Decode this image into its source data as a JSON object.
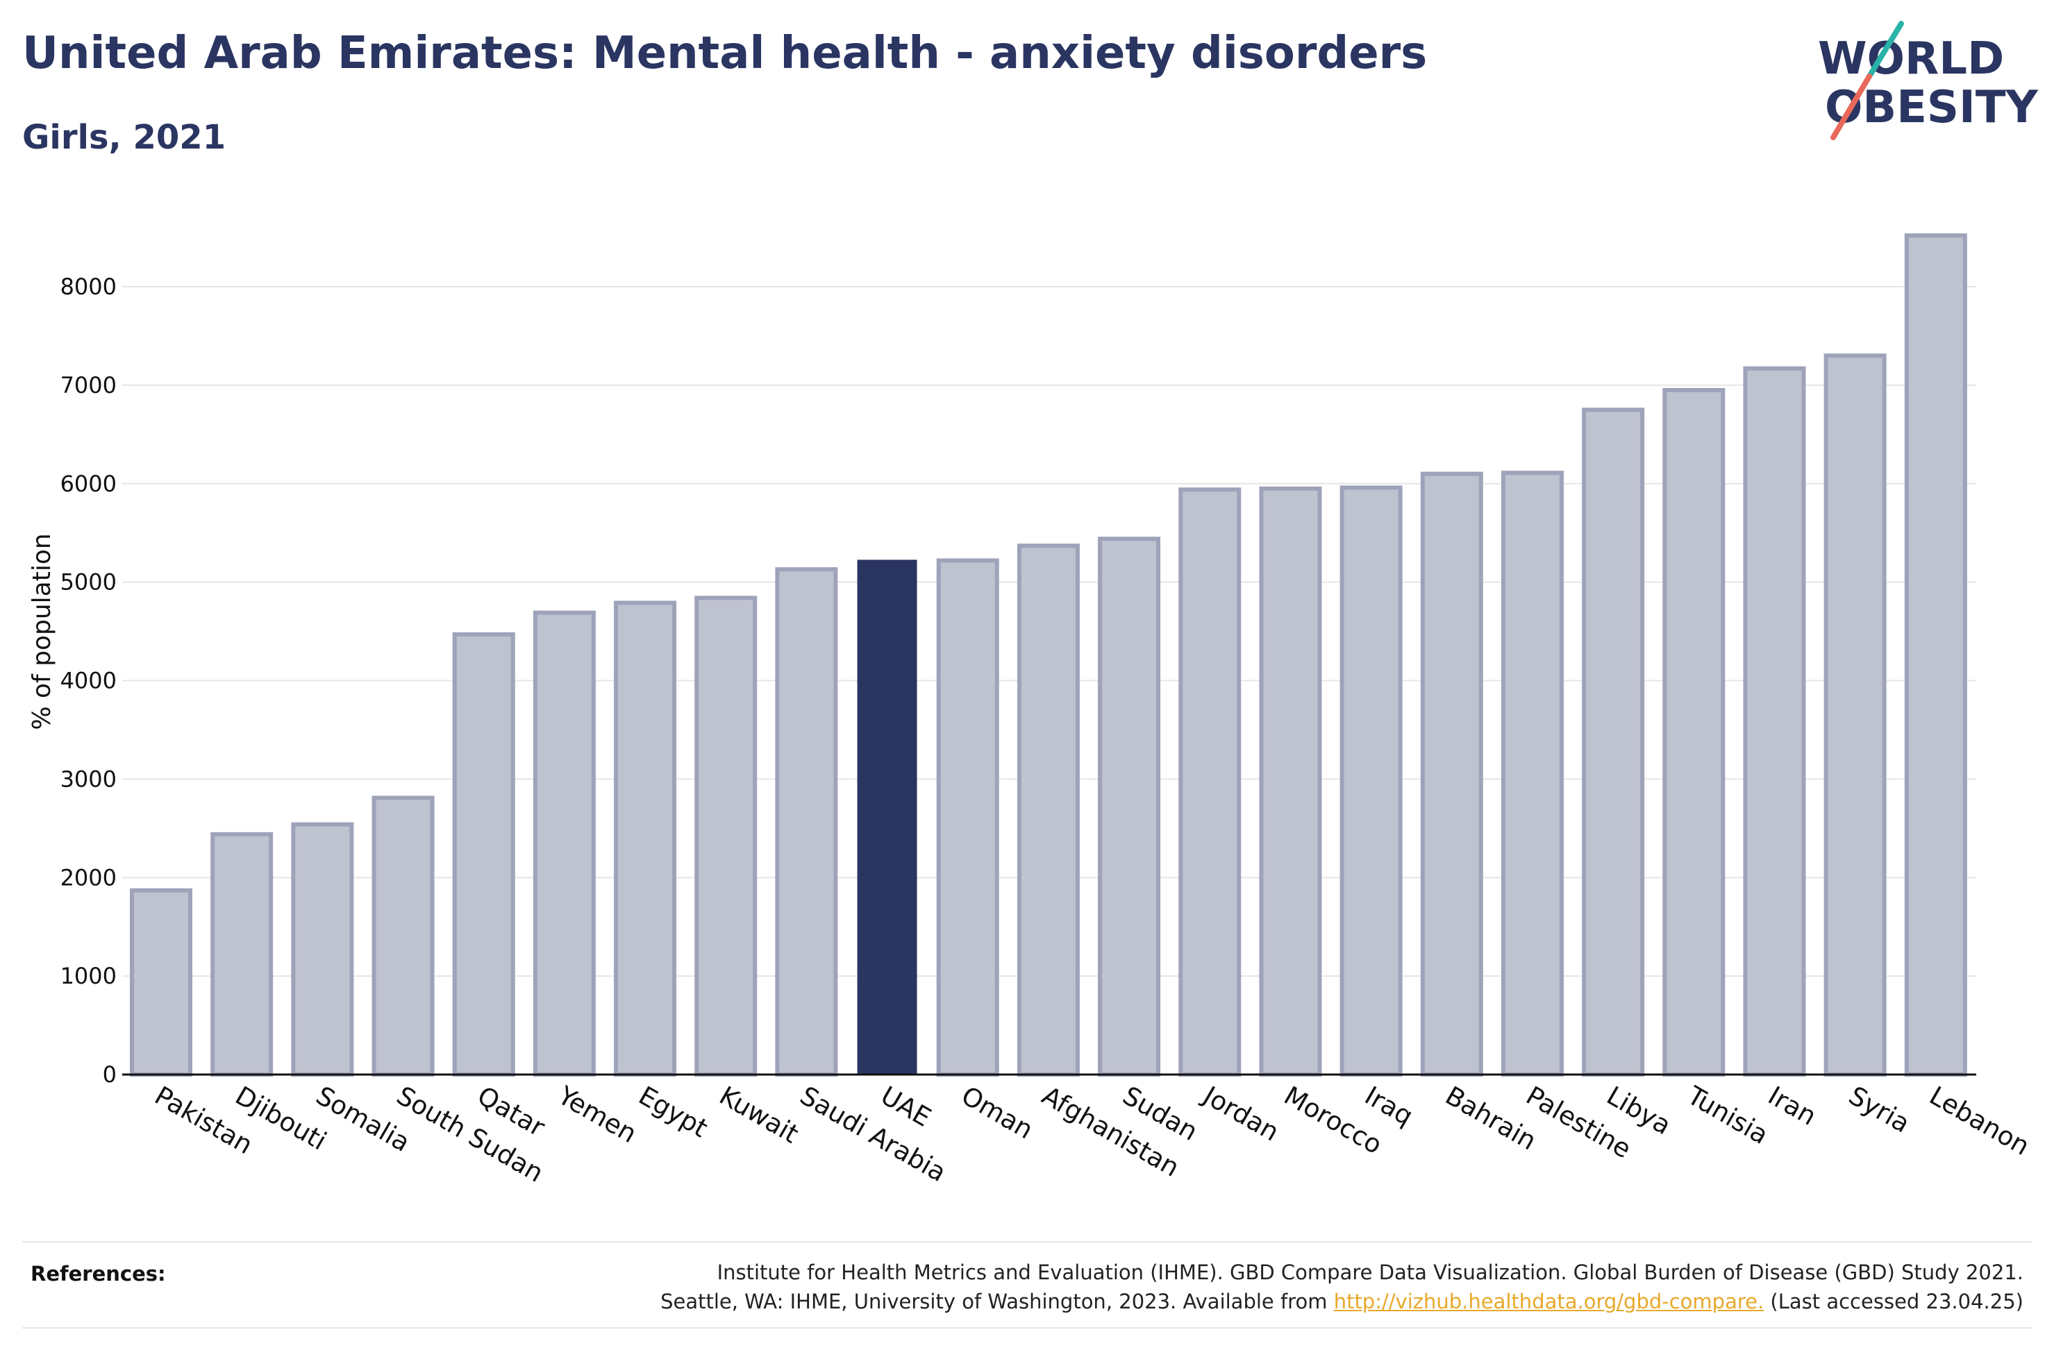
{
  "header": {
    "title": "United Arab Emirates: Mental health - anxiety disorders",
    "subtitle": "Girls, 2021"
  },
  "logo": {
    "line1": "WORLD",
    "line2": "OBESITY"
  },
  "colors": {
    "highlight_bar": "#2a3561",
    "other_bar_fill": "#bfc2cf",
    "other_bar_stroke": "#9ea3ba",
    "title": "#2a3561",
    "grid": "#e6e6e6",
    "link": "#e8a82a",
    "logo_teal": "#2ab3a8",
    "logo_coral": "#e8685a"
  },
  "chart_data": {
    "type": "bar",
    "title": "",
    "xlabel": "",
    "ylabel": "% of population",
    "ylim": [
      0,
      8600
    ],
    "yticks": [
      0,
      1000,
      2000,
      3000,
      4000,
      5000,
      6000,
      7000,
      8000
    ],
    "grid": true,
    "highlight": "UAE",
    "categories": [
      "Pakistan",
      "Djibouti",
      "Somalia",
      "South Sudan",
      "Qatar",
      "Yemen",
      "Egypt",
      "Kuwait",
      "Saudi Arabia",
      "UAE",
      "Oman",
      "Afghanistan",
      "Sudan",
      "Jordan",
      "Morocco",
      "Iraq",
      "Bahrain",
      "Palestine",
      "Libya",
      "Tunisia",
      "Iran",
      "Syria",
      "Lebanon"
    ],
    "values": [
      1870,
      2440,
      2540,
      2810,
      4470,
      4690,
      4790,
      4840,
      5130,
      5220,
      5220,
      5370,
      5440,
      5940,
      5950,
      5960,
      6100,
      6110,
      6750,
      6950,
      7170,
      7300,
      8520
    ]
  },
  "footer": {
    "references_label": "References:",
    "line1": "Institute for Health Metrics and Evaluation (IHME). GBD Compare Data Visualization. Global Burden of Disease (GBD) Study 2021.",
    "line2_prefix": "Seattle, WA: IHME, University of Washington, 2023. Available from ",
    "link_text": "http://vizhub.healthdata.org/gbd-compare.",
    "line2_suffix": " (Last accessed 23.04.25)"
  }
}
